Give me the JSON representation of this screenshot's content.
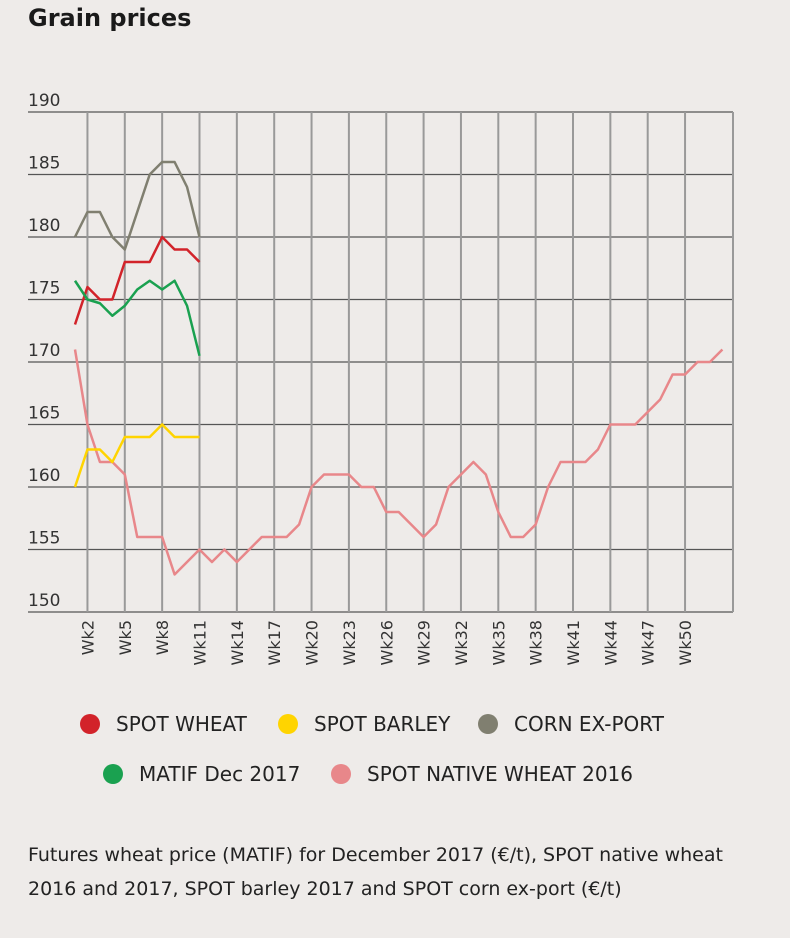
{
  "title": "Grain prices",
  "chart_data": {
    "type": "line",
    "title": "Grain prices",
    "ylim": [
      150,
      190
    ],
    "yticks": [
      150,
      155,
      160,
      165,
      170,
      175,
      180,
      185,
      190
    ],
    "xlim": [
      1,
      53
    ],
    "xticks": [
      "Wk2",
      "Wk5",
      "Wk8",
      "Wk11",
      "Wk14",
      "Wk17",
      "Wk20",
      "Wk23",
      "Wk26",
      "Wk29",
      "Wk32",
      "Wk35",
      "Wk38",
      "Wk41",
      "Wk44",
      "Wk47",
      "Wk50"
    ],
    "xtick_weeks": [
      2,
      5,
      8,
      11,
      14,
      17,
      20,
      23,
      26,
      29,
      32,
      35,
      38,
      41,
      44,
      47,
      50
    ],
    "grid": true,
    "series": [
      {
        "name": "SPOT WHEAT",
        "color": "#d2232a",
        "start_week": 1,
        "values": [
          173,
          176,
          175,
          175,
          178,
          178,
          178,
          180,
          179,
          179,
          178
        ]
      },
      {
        "name": "SPOT BARLEY",
        "color": "#ffd400",
        "start_week": 1,
        "values": [
          160,
          163,
          163,
          162,
          164,
          164,
          164,
          165,
          164,
          164,
          164
        ]
      },
      {
        "name": "CORN EX-PORT",
        "color": "#807f70",
        "start_week": 1,
        "values": [
          180,
          182,
          182,
          180,
          179,
          182,
          185,
          186,
          186,
          184,
          180
        ]
      },
      {
        "name": "MATIF Dec 2017",
        "color": "#1aa150",
        "start_week": 1,
        "values": [
          176.5,
          175,
          174.7,
          173.7,
          174.5,
          175.8,
          176.5,
          175.8,
          176.5,
          174.5,
          170.5
        ]
      },
      {
        "name": "SPOT NATIVE WHEAT 2016",
        "color": "#e8878a",
        "start_week": 1,
        "values": [
          171,
          165,
          162,
          162,
          161,
          156,
          156,
          156,
          153,
          154,
          155,
          154,
          155,
          154,
          155,
          156,
          156,
          156,
          157,
          160,
          161,
          161,
          161,
          160,
          160,
          158,
          158,
          157,
          156,
          157,
          160,
          161,
          162,
          161,
          158,
          156,
          156,
          157,
          160,
          162,
          162,
          162,
          163,
          165,
          165,
          165,
          166,
          167,
          169,
          169,
          170,
          170,
          171
        ]
      }
    ]
  },
  "caption": "Futures wheat price (MATIF) for December 2017 (€/t), SPOT native wheat 2016 and 2017, SPOT barley 2017 and SPOT corn ex-port (€/t)"
}
